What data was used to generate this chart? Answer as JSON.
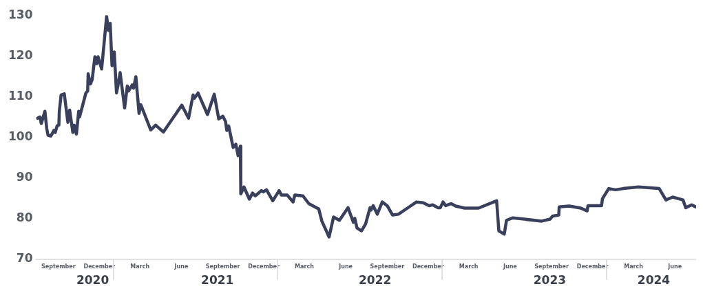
{
  "chart_data": {
    "type": "line",
    "x": [
      "2020-07-17",
      "2020-07-22",
      "2020-07-25",
      "2020-08-02",
      "2020-08-06",
      "2020-08-09",
      "2020-08-15",
      "2020-08-22",
      "2020-08-25",
      "2020-08-29",
      "2020-09-02",
      "2020-09-03",
      "2020-09-07",
      "2020-09-14",
      "2020-09-22",
      "2020-09-26",
      "2020-10-03",
      "2020-10-06",
      "2020-10-11",
      "2020-10-16",
      "2020-10-18",
      "2020-11-01",
      "2020-11-05",
      "2020-11-06",
      "2020-11-11",
      "2020-11-15",
      "2020-11-21",
      "2020-11-25",
      "2020-11-28",
      "2020-12-06",
      "2020-12-17",
      "2020-12-21",
      "2020-12-25",
      "2020-12-29",
      "2021-01-03",
      "2021-01-08",
      "2021-01-11",
      "2021-01-16",
      "2021-01-26",
      "2021-02-01",
      "2021-02-04",
      "2021-02-12",
      "2021-02-15",
      "2021-02-20",
      "2021-02-27",
      "2021-03-03",
      "2021-03-25",
      "2021-04-05",
      "2021-04-22",
      "2021-06-02",
      "2021-06-17",
      "2021-06-27",
      "2021-06-30",
      "2021-07-08",
      "2021-07-29",
      "2021-08-13",
      "2021-08-23",
      "2021-09-01",
      "2021-09-07",
      "2021-09-10",
      "2021-09-14",
      "2021-09-24",
      "2021-09-30",
      "2021-10-05",
      "2021-10-10",
      "2021-10-11",
      "2021-10-18",
      "2021-10-30",
      "2021-11-06",
      "2021-11-12",
      "2021-11-26",
      "2021-11-30",
      "2021-12-07",
      "2021-12-21",
      "2022-01-04",
      "2022-01-09",
      "2022-01-22",
      "2022-02-04",
      "2022-02-08",
      "2022-02-26",
      "2022-03-11",
      "2022-04-02",
      "2022-04-09",
      "2022-04-25",
      "2022-05-05",
      "2022-05-18",
      "2022-06-06",
      "2022-06-18",
      "2022-06-21",
      "2022-06-26",
      "2022-07-06",
      "2022-07-15",
      "2022-07-25",
      "2022-07-27",
      "2022-08-01",
      "2022-08-10",
      "2022-08-21",
      "2022-09-01",
      "2022-09-13",
      "2022-09-26",
      "2022-10-16",
      "2022-11-05",
      "2022-11-20",
      "2022-12-03",
      "2022-12-11",
      "2022-12-23",
      "2022-12-28",
      "2023-01-03",
      "2023-01-09",
      "2023-01-21",
      "2023-01-31",
      "2023-02-20",
      "2023-03-23",
      "2023-05-02",
      "2023-05-07",
      "2023-05-19",
      "2023-05-24",
      "2023-06-07",
      "2023-08-10",
      "2023-08-29",
      "2023-09-03",
      "2023-09-17",
      "2023-09-18",
      "2023-10-10",
      "2023-11-05",
      "2023-11-19",
      "2023-11-21",
      "2023-12-21",
      "2023-12-23",
      "2024-01-06",
      "2024-01-21",
      "2024-02-07",
      "2024-03-12",
      "2024-04-27",
      "2024-05-12",
      "2024-05-27",
      "2024-06-19",
      "2024-06-25",
      "2024-07-08",
      "2024-07-17"
    ],
    "series": [
      {
        "color": "#3a3f5c",
        "values": [
          104.7,
          105,
          103.4,
          106.4,
          102.2,
          100.5,
          100.3,
          101.7,
          101.2,
          102.8,
          103,
          106.4,
          110.4,
          110.7,
          103.7,
          106.7,
          101.2,
          103,
          100.8,
          106.4,
          105,
          110.9,
          111.4,
          115.6,
          113.1,
          114.2,
          119.8,
          118.1,
          119.8,
          116.8,
          129.7,
          126.3,
          128,
          117.6,
          121,
          110.9,
          112.6,
          115.9,
          107.2,
          112.6,
          111.4,
          112.9,
          112.1,
          114.9,
          105.9,
          108,
          101.8,
          103,
          101.3,
          107.9,
          104.7,
          110.4,
          109.6,
          110.9,
          105.6,
          110.6,
          104.5,
          105.2,
          103.9,
          101.7,
          102.8,
          97.5,
          98.3,
          95.5,
          97.8,
          86.1,
          87.8,
          84.8,
          86.3,
          85.6,
          86.9,
          86.6,
          87.1,
          84.4,
          86.9,
          85.8,
          85.8,
          84.1,
          85.8,
          85.6,
          83.7,
          82.4,
          79.4,
          75.5,
          80.4,
          79.6,
          82.7,
          79.1,
          80.1,
          77.7,
          77,
          78.7,
          82.7,
          82.1,
          83.2,
          81.1,
          84.1,
          83.2,
          80.9,
          81.1,
          82.6,
          84.1,
          83.9,
          83.2,
          83.4,
          82.7,
          82.7,
          84.1,
          83.2,
          83.7,
          83.1,
          82.6,
          82.6,
          84.4,
          77,
          76.2,
          79.6,
          80.2,
          79.4,
          79.9,
          80.6,
          80.9,
          82.9,
          83.1,
          82.6,
          81.9,
          83.2,
          83.2,
          84.9,
          87.4,
          87.1,
          87.4,
          87.8,
          87.4,
          84.6,
          85.3,
          84.6,
          82.7,
          83.4,
          82.9
        ]
      }
    ],
    "xlim": [
      "2020-07-12",
      "2024-07-18"
    ],
    "xticks": [
      {
        "value": "2020-09-01",
        "label": "September"
      },
      {
        "value": "2020-12-01",
        "label": "December"
      },
      {
        "value": "2021-03-01",
        "label": "March"
      },
      {
        "value": "2021-06-01",
        "label": "June"
      },
      {
        "value": "2021-09-01",
        "label": "September"
      },
      {
        "value": "2021-12-01",
        "label": "December"
      },
      {
        "value": "2022-03-01",
        "label": "March"
      },
      {
        "value": "2022-06-01",
        "label": "June"
      },
      {
        "value": "2022-09-01",
        "label": "September"
      },
      {
        "value": "2022-12-01",
        "label": "December"
      },
      {
        "value": "2023-03-01",
        "label": "March"
      },
      {
        "value": "2023-06-01",
        "label": "June"
      },
      {
        "value": "2023-09-01",
        "label": "September"
      },
      {
        "value": "2023-12-01",
        "label": "December"
      },
      {
        "value": "2024-03-01",
        "label": "March"
      },
      {
        "value": "2024-06-01",
        "label": "June"
      }
    ],
    "x2lim": [
      "2020-07-12",
      "2024-07-18"
    ],
    "x2ticks": [
      {
        "value": "2020-11-16",
        "label": "2020"
      },
      {
        "value": "2021-08-20",
        "label": "2021"
      },
      {
        "value": "2022-08-05",
        "label": "2022"
      },
      {
        "value": "2023-08-28",
        "label": "2023"
      },
      {
        "value": "2024-04-15",
        "label": "2024"
      }
    ],
    "ylim": [
      70,
      130
    ],
    "yticks": [
      70,
      80,
      90,
      100,
      110,
      120,
      130
    ],
    "grid": false,
    "legend": false,
    "marker": "none",
    "line_style": "solid"
  }
}
